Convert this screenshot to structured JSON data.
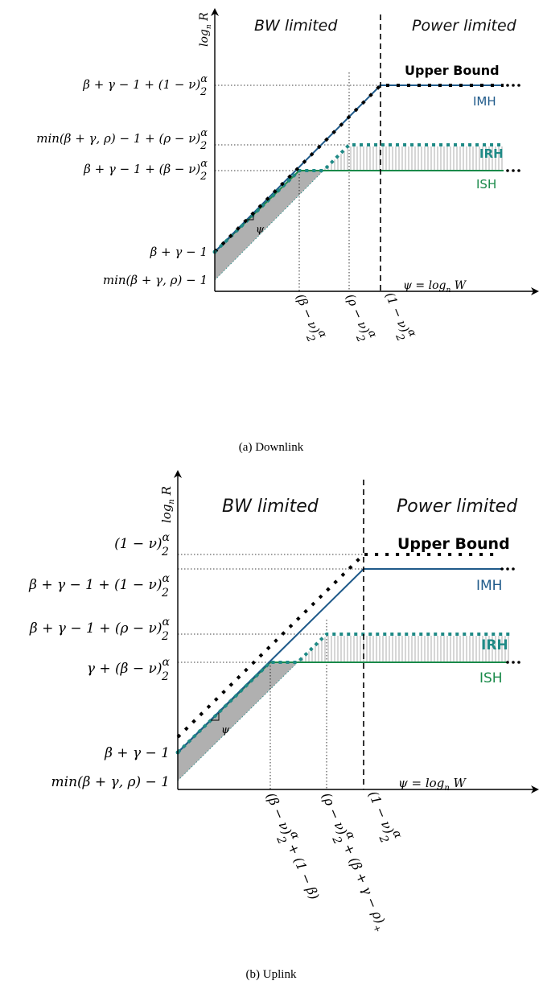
{
  "panels": [
    {
      "id": "downlink",
      "caption": "(a)  Downlink",
      "region_left": "BW limited",
      "region_right": "Power limited",
      "y_axis_label": "log_n R",
      "x_axis_label": "ψ = log_n W",
      "y_ticks": [
        "β + γ − 1 + (1 − ν) α/2",
        "min(β + γ, ρ) − 1 + (ρ − ν) α/2",
        "β + γ − 1 + (β − ν) α/2",
        "β + γ − 1",
        "min(β + γ, ρ) − 1"
      ],
      "x_ticks": [
        "(β − ν) α/2",
        "(ρ − ν) α/2",
        "(1 − ν) α/2"
      ],
      "slope_label": "ψ",
      "legend": {
        "upper_bound": "Upper Bound",
        "imh": "IMH",
        "irh": "IRH",
        "ish": "ISH"
      }
    },
    {
      "id": "uplink",
      "caption": "(b)  Uplink",
      "region_left": "BW limited",
      "region_right": "Power limited",
      "y_axis_label": "log_n R",
      "x_axis_label": "ψ = log_n W",
      "y_ticks": [
        "(1 − ν) α/2",
        "β + γ − 1 + (1 − ν) α/2",
        "β + γ − 1 + (ρ − ν) α/2",
        "γ + (β − ν) α/2",
        "β + γ − 1",
        "min(β + γ, ρ) − 1"
      ],
      "x_ticks": [
        "(β − ν) α/2 + (1 − β)",
        "(ρ − ν) α/2 + (β + γ − ρ)+",
        "(1 − ν) α/2"
      ],
      "slope_label": "ψ",
      "legend": {
        "upper_bound": "Upper Bound",
        "imh": "IMH",
        "irh": "IRH",
        "ish": "ISH"
      }
    }
  ],
  "colors": {
    "imh": "#1f5a8a",
    "irh": "#1f8a86",
    "ish": "#1a8a4a",
    "shade": "#b0b0b0",
    "bound": "#000000"
  }
}
